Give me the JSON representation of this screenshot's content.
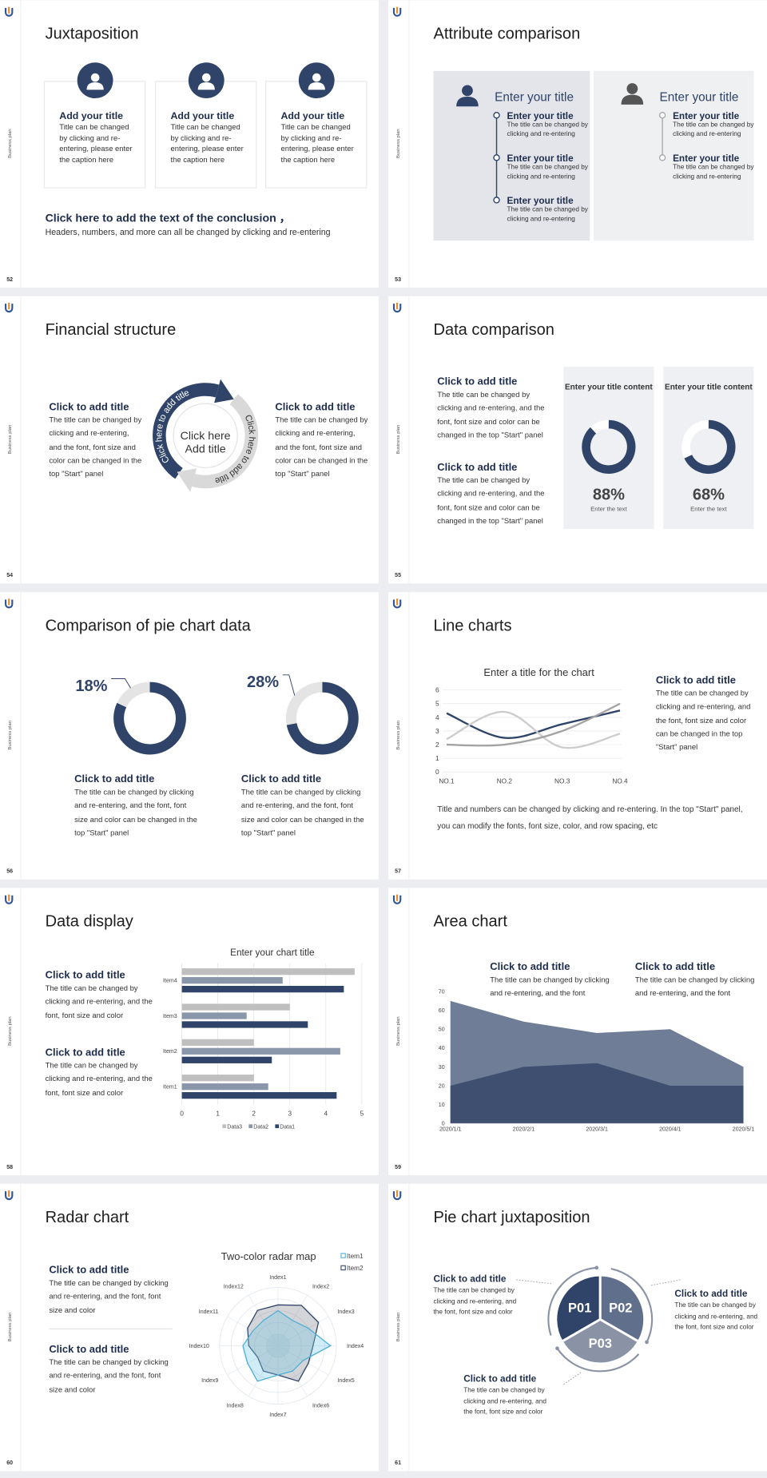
{
  "side_label": "Business plan",
  "slides": [
    {
      "number": "52",
      "title": "Juxtaposition",
      "cards": [
        {
          "title": "Add your title",
          "text": "Title can be changed by clicking and re-entering, please enter the caption here"
        },
        {
          "title": "Add your title",
          "text": "Title can be changed by clicking and re-entering, please enter the caption here"
        },
        {
          "title": "Add your title",
          "text": "Title can be changed by clicking and re-entering, please enter the caption here"
        }
      ],
      "conclusion": {
        "title": "Click here to add the text of the conclusion ，",
        "text": "Headers, numbers, and more can all be changed by clicking and re-entering"
      }
    },
    {
      "number": "53",
      "title": "Attribute comparison",
      "panels": [
        {
          "heading": "Enter your title",
          "items": [
            {
              "title": "Enter your title",
              "text": "The title can be changed by clicking and re-entering"
            },
            {
              "title": "Enter your title",
              "text": "The title can be changed by clicking and re-entering"
            },
            {
              "title": "Enter your title",
              "text": "The title can be changed by clicking and re-entering"
            }
          ]
        },
        {
          "heading": "Enter your title",
          "items": [
            {
              "title": "Enter your title",
              "text": "The title can be changed by clicking and re-entering"
            },
            {
              "title": "Enter your title",
              "text": "The title can be changed by clicking and re-entering"
            }
          ]
        }
      ]
    },
    {
      "number": "54",
      "title": "Financial structure",
      "blocks": [
        {
          "title": "Click to add title",
          "text": "The title can be changed by clicking and re-entering, and the font, font size and color can be changed in the top \"Start\" panel"
        },
        {
          "title": "Click to add title",
          "text": "The title can be changed by clicking and re-entering, and the font, font size and color can be changed in the top \"Start\" panel"
        }
      ],
      "center": [
        "Click here",
        "Add title"
      ],
      "arrows": [
        "Click here to add title",
        "Click here to add title"
      ]
    },
    {
      "number": "55",
      "title": "Data comparison",
      "blocks": [
        {
          "title": "Click to add title",
          "text": "The title can be changed by clicking and re-entering, and the font, font size and color can be changed in the top \"Start\" panel"
        },
        {
          "title": "Click to add title",
          "text": "The title can be changed by clicking and re-entering, and the font, font size and color can be changed in the top \"Start\" panel"
        }
      ],
      "chart_data": {
        "type": "donut",
        "categories": [
          "Enter your title content",
          "Enter your title content"
        ],
        "values": [
          88,
          68
        ],
        "value_labels": [
          "88%",
          "68%"
        ],
        "captions": [
          "Enter the text",
          "Enter the text"
        ],
        "color": "#2f4468"
      }
    },
    {
      "number": "56",
      "title": "Comparison of pie chart data",
      "chart_data": {
        "type": "donut",
        "values": [
          18,
          28
        ],
        "value_labels": [
          "18%",
          "28%"
        ],
        "color": "#e4e4e4",
        "rest_color": "#2f4468"
      },
      "blocks": [
        {
          "title": "Click to add title",
          "text": "The title can be changed by clicking and re-entering, and the font, font size and color can be changed in the top \"Start\" panel"
        },
        {
          "title": "Click to add title",
          "text": "The title can be changed by clicking and re-entering, and the font, font size and color can be changed in the top \"Start\" panel"
        }
      ]
    },
    {
      "number": "57",
      "title": "Line charts",
      "chart_data": {
        "type": "line",
        "title": "Enter a title for the chart",
        "categories": [
          "NO.1",
          "NO.2",
          "NO.3",
          "NO.4"
        ],
        "series": [
          {
            "color": "#2f4468",
            "values": [
              4.3,
              2.5,
              3.5,
              4.5
            ]
          },
          {
            "color": "#cdcdcd",
            "values": [
              2.4,
              4.4,
              1.8,
              2.8
            ]
          },
          {
            "color": "#a3a3a3",
            "values": [
              2,
              2,
              3,
              5
            ]
          }
        ],
        "ylim": [
          0,
          6
        ],
        "yticks": [
          0,
          1,
          2,
          3,
          4,
          5,
          6
        ],
        "grid": true,
        "smooth": true
      },
      "block": {
        "title": "Click to add title",
        "text": "The title can be changed by clicking and re-entering, and the font, font size and color can be changed in the top \"Start\" panel"
      },
      "note": "Title and numbers can be changed by clicking and re-entering. In the top \"Start\" panel, you can modify the fonts, font size, color, and row spacing, etc"
    },
    {
      "number": "58",
      "title": "Data display",
      "chart_data": {
        "type": "hbar",
        "title": "Enter your chart title",
        "categories": [
          "Item1",
          "Item2",
          "Item3",
          "Item4"
        ],
        "series": [
          {
            "name": "Data1",
            "color": "#2f4468",
            "values": [
              4.3,
              2.5,
              3.5,
              4.5
            ]
          },
          {
            "name": "Data2",
            "color": "#8a96aa",
            "values": [
              2.4,
              4.4,
              1.8,
              2.8
            ]
          },
          {
            "name": "Data3",
            "color": "#bfbfbf",
            "values": [
              2,
              2,
              3,
              4.8
            ]
          }
        ],
        "xlim": [
          0,
          5
        ],
        "xticks": [
          0,
          1,
          2,
          3,
          4,
          5
        ],
        "grid": true
      },
      "blocks": [
        {
          "title": "Click to add title",
          "text": "The title can be changed by clicking and re-entering, and the font, font size and color"
        },
        {
          "title": "Click to add title",
          "text": "The title can be changed by clicking and re-entering, and the font, font size and color"
        }
      ]
    },
    {
      "number": "59",
      "title": "Area chart",
      "blocks": [
        {
          "title": "Click to add title",
          "text": "The title can be changed by clicking and re-entering, and the font"
        },
        {
          "title": "Click to add title",
          "text": "The title can be changed by clicking and re-entering, and the font"
        }
      ],
      "chart_data": {
        "type": "area",
        "categories": [
          "2020/1/1",
          "2020/2/1",
          "2020/3/1",
          "2020/4/1",
          "2020/5/1"
        ],
        "series": [
          {
            "color": "#6f7d97",
            "values": [
              65,
              54,
              48,
              50,
              30
            ]
          },
          {
            "color": "#3f4f6f",
            "values": [
              20,
              30,
              32,
              20,
              20
            ]
          }
        ],
        "ylim": [
          0,
          70
        ],
        "yticks": [
          0,
          10,
          20,
          30,
          40,
          50,
          60,
          70
        ]
      }
    },
    {
      "number": "60",
      "title": "Radar chart",
      "blocks": [
        {
          "title": "Click to add title",
          "text": "The title can be changed by clicking and re-entering, and the font, font size and color"
        },
        {
          "title": "Click to add title",
          "text": "The title can be changed by clicking and re-entering, and the font, font size and color"
        }
      ],
      "chart_data": {
        "type": "radar",
        "title": "Two-color radar map",
        "categories": [
          "Index1",
          "Index2",
          "Index3",
          "Index4",
          "Index5",
          "Index6",
          "Index7",
          "Index8",
          "Index9",
          "Index10",
          "Index11",
          "Index12"
        ],
        "series": [
          {
            "name": "Item1",
            "color": "#4fb0d4",
            "values": [
              6,
              5,
              6,
              9,
              5,
              5,
              5,
              7,
              6,
              6,
              5,
              5
            ]
          },
          {
            "name": "Item2",
            "color": "#2f4468",
            "values": [
              7,
              8,
              8,
              6,
              6,
              7,
              5,
              5,
              4,
              5,
              6,
              7
            ]
          }
        ],
        "rlim": [
          0,
          10
        ],
        "rticks": [
          2,
          4,
          6,
          8,
          10
        ]
      }
    },
    {
      "number": "61",
      "title": "Pie chart juxtaposition",
      "segments": [
        "P01",
        "P02",
        "P03"
      ],
      "blocks": [
        {
          "title": "Click to add title",
          "text": "The title can be changed by clicking and re-entering, and the font, font size and color"
        },
        {
          "title": "Click to add title",
          "text": "The title can be changed by clicking and re-entering, and the font, font size and color"
        },
        {
          "title": "Click to add title",
          "text": "The title can be changed by clicking and re-entering, and the font, font size and color"
        }
      ]
    }
  ]
}
